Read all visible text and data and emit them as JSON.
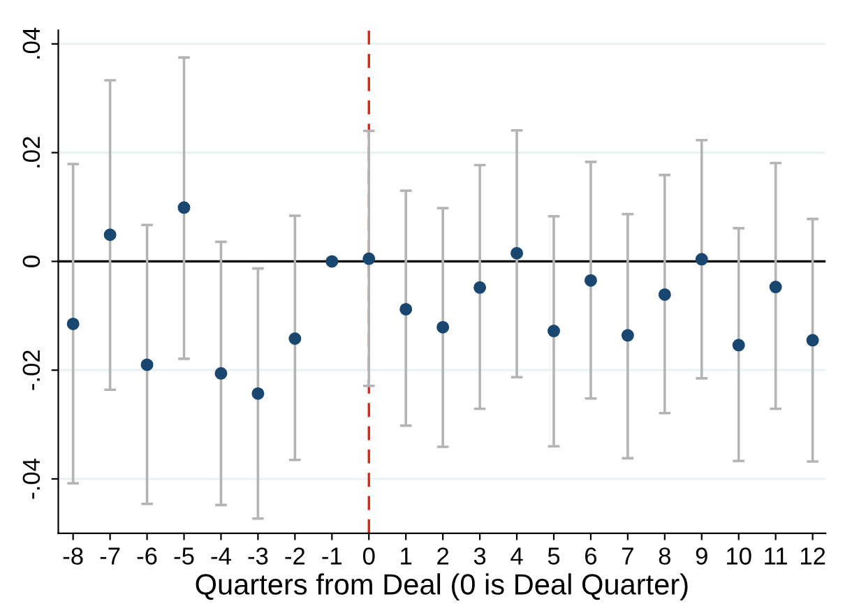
{
  "chart_data": {
    "type": "scatter",
    "xlabel": "Quarters from Deal (0 is Deal Quarter)",
    "x": [
      -8,
      -7,
      -6,
      -5,
      -4,
      -3,
      -2,
      -1,
      0,
      1,
      2,
      3,
      4,
      5,
      6,
      7,
      8,
      9,
      10,
      11,
      12
    ],
    "series": [
      {
        "color": "#1a476f",
        "values": [
          -0.0115,
          0.0049,
          -0.019,
          0.0099,
          -0.0206,
          -0.0243,
          -0.0142,
          0,
          0.0005,
          -0.0088,
          -0.0121,
          -0.0048,
          0.0015,
          -0.0128,
          -0.0035,
          -0.0136,
          -0.0061,
          0.0004,
          -0.0154,
          -0.0047,
          -0.0145
        ],
        "errors": [
          [
            -0.0408,
            0.0179
          ],
          [
            -0.0236,
            0.0333
          ],
          [
            -0.0446,
            0.0067
          ],
          [
            -0.0179,
            0.0375
          ],
          [
            -0.0448,
            0.0036
          ],
          [
            -0.0473,
            -0.0013
          ],
          [
            -0.0365,
            0.0084
          ],
          null,
          [
            -0.0229,
            0.024
          ],
          [
            -0.0302,
            0.013
          ],
          [
            -0.0341,
            0.0098
          ],
          [
            -0.0271,
            0.0177
          ],
          [
            -0.0213,
            0.0241
          ],
          [
            -0.034,
            0.0083
          ],
          [
            -0.0252,
            0.0183
          ],
          [
            -0.0362,
            0.0087
          ],
          [
            -0.0279,
            0.0159
          ],
          [
            -0.0215,
            0.0223
          ],
          [
            -0.0367,
            0.0061
          ],
          [
            -0.0271,
            0.0181
          ],
          [
            -0.0368,
            0.0078
          ]
        ]
      }
    ],
    "xlim": [
      -8.4,
      12.35
    ],
    "xticks": [
      -8,
      -7,
      -6,
      -5,
      -4,
      -3,
      -2,
      -1,
      0,
      1,
      2,
      3,
      4,
      5,
      6,
      7,
      8,
      9,
      10,
      11,
      12
    ],
    "ylim": [
      -0.05,
      0.0425
    ],
    "yticks": [
      {
        "value": -0.04,
        "label": "-.04"
      },
      {
        "value": -0.02,
        "label": "-.02"
      },
      0,
      {
        "value": 0.02,
        "label": ".02"
      },
      {
        "value": 0.04,
        "label": ".04"
      }
    ],
    "ref_lines": [
      {
        "axis": "y",
        "value": 0,
        "color": "#000000",
        "line_style": "solid"
      },
      {
        "axis": "x",
        "value": 0,
        "color": "#e0201b",
        "line_style": "dashed"
      }
    ],
    "grid": "y",
    "marker": "circle",
    "legend": false
  }
}
